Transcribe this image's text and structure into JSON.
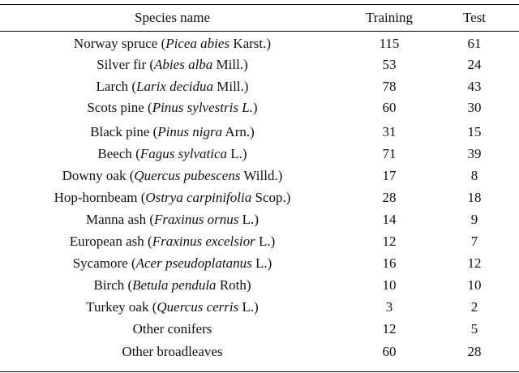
{
  "headers": {
    "species": "Species name",
    "training": "Training",
    "test": "Test"
  },
  "rows": [
    {
      "common": "Norway spruce",
      "latin": "Picea abies",
      "author": "Karst.",
      "training": "115",
      "test": "61"
    },
    {
      "common": "Silver fir",
      "latin": "Abies alba",
      "author": "Mill.",
      "training": "53",
      "test": "24"
    },
    {
      "common": "Larch",
      "latin": "Larix decidua",
      "author": "Mill.",
      "training": "78",
      "test": "43"
    },
    {
      "common": "Scots pine",
      "latin": "Pinus sylvestris L.",
      "author": "",
      "training": "60",
      "test": "30"
    },
    {
      "common": "Black pine",
      "latin": "Pinus nigra",
      "author": "Arn.",
      "training": "31",
      "test": "15"
    },
    {
      "common": "Beech",
      "latin": "Fagus sylvatica",
      "author": "L.",
      "training": "71",
      "test": "39"
    },
    {
      "common": "Downy oak",
      "latin": "Quercus pubescens",
      "author": "Willd.",
      "training": "17",
      "test": "8"
    },
    {
      "common": "Hop-hornbeam",
      "latin": "Ostrya carpinifolia",
      "author": "Scop.",
      "training": "28",
      "test": "18"
    },
    {
      "common": "Manna ash",
      "latin": "Fraxinus ornus",
      "author": "L.",
      "training": "14",
      "test": "9"
    },
    {
      "common": "European ash",
      "latin": "Fraxinus excelsior",
      "author": "L.",
      "training": "12",
      "test": "7"
    },
    {
      "common": "Sycamore",
      "latin": "Acer pseudoplatanus",
      "author": "L.",
      "training": "16",
      "test": "12"
    },
    {
      "common": "Birch",
      "latin": "Betula pendula",
      "author": "Roth",
      "training": "10",
      "test": "10"
    },
    {
      "common": "Turkey oak",
      "latin": "Quercus cerris",
      "author": "L.",
      "training": "3",
      "test": "2"
    },
    {
      "common": "Other conifers",
      "latin": "",
      "author": "",
      "training": "12",
      "test": "5"
    },
    {
      "common": "Other broadleaves",
      "latin": "",
      "author": "",
      "training": "60",
      "test": "28"
    }
  ]
}
